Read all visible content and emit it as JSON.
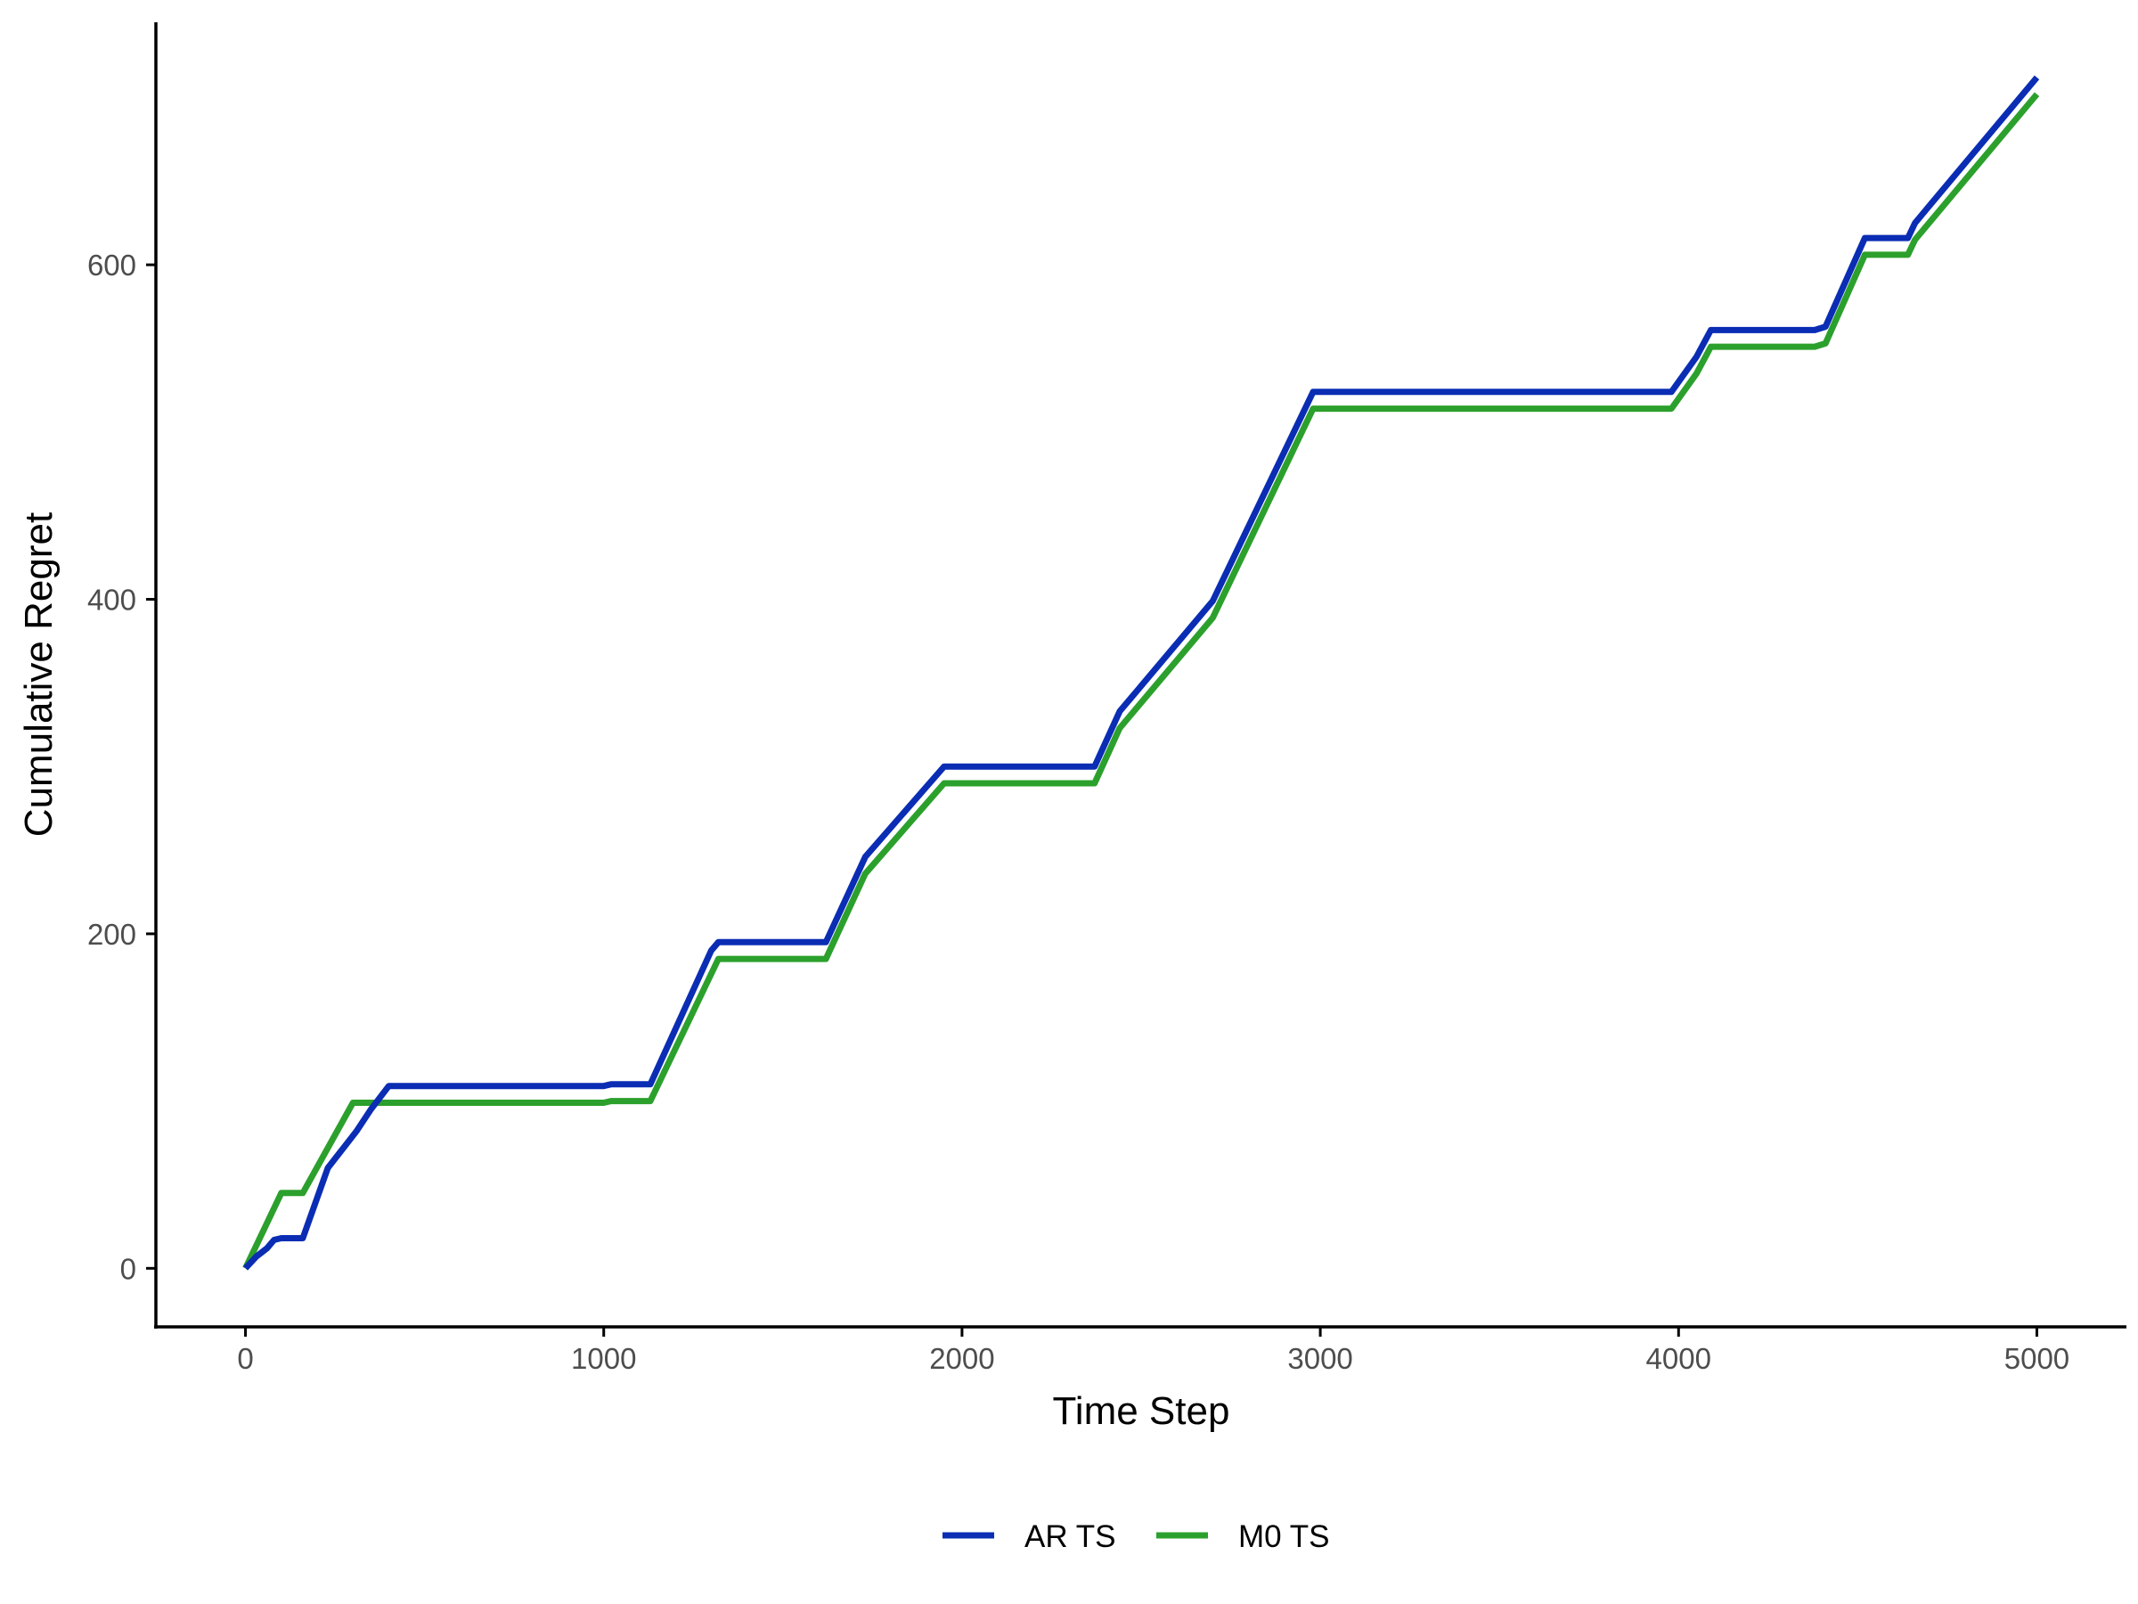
{
  "chart_data": {
    "type": "line",
    "title": "",
    "xlabel": "Time Step",
    "ylabel": "Cumulative Regret",
    "xlim": [
      -250,
      5250
    ],
    "ylim": [
      -35,
      745
    ],
    "x_ticks": [
      0,
      1000,
      2000,
      3000,
      4000,
      5000
    ],
    "y_ticks": [
      0,
      200,
      400,
      600
    ],
    "x_tick_labels": [
      "0",
      "1000",
      "2000",
      "3000",
      "4000",
      "5000"
    ],
    "y_tick_labels": [
      "0",
      "200",
      "400",
      "600"
    ],
    "grid": false,
    "legend_position": "bottom",
    "series": [
      {
        "name": "AR TS",
        "color": "#0a2db4",
        "x": [
          0,
          30,
          60,
          80,
          100,
          160,
          230,
          310,
          350,
          400,
          1000,
          1020,
          1130,
          1300,
          1320,
          1620,
          1730,
          1950,
          2370,
          2440,
          2700,
          2980,
          3980,
          4050,
          4090,
          4380,
          4410,
          4520,
          4640,
          4660,
          5000
        ],
        "y": [
          0,
          7,
          12,
          17,
          18,
          18,
          60,
          82,
          95,
          109,
          109,
          110,
          110,
          190,
          195,
          195,
          246,
          300,
          300,
          333,
          399,
          524,
          524,
          545,
          561,
          561,
          563,
          616,
          616,
          625,
          712
        ]
      },
      {
        "name": "M0 TS",
        "color": "#2ca02c",
        "x": [
          0,
          100,
          160,
          300,
          1000,
          1020,
          1130,
          1320,
          1620,
          1730,
          1950,
          2370,
          2440,
          2700,
          2980,
          3980,
          4050,
          4090,
          4380,
          4410,
          4520,
          4640,
          4660,
          5000
        ],
        "y": [
          0,
          45,
          45,
          99,
          99,
          100,
          100,
          185,
          185,
          236,
          290,
          290,
          323,
          389,
          514,
          514,
          535,
          551,
          551,
          553,
          606,
          606,
          615,
          702
        ]
      }
    ]
  }
}
